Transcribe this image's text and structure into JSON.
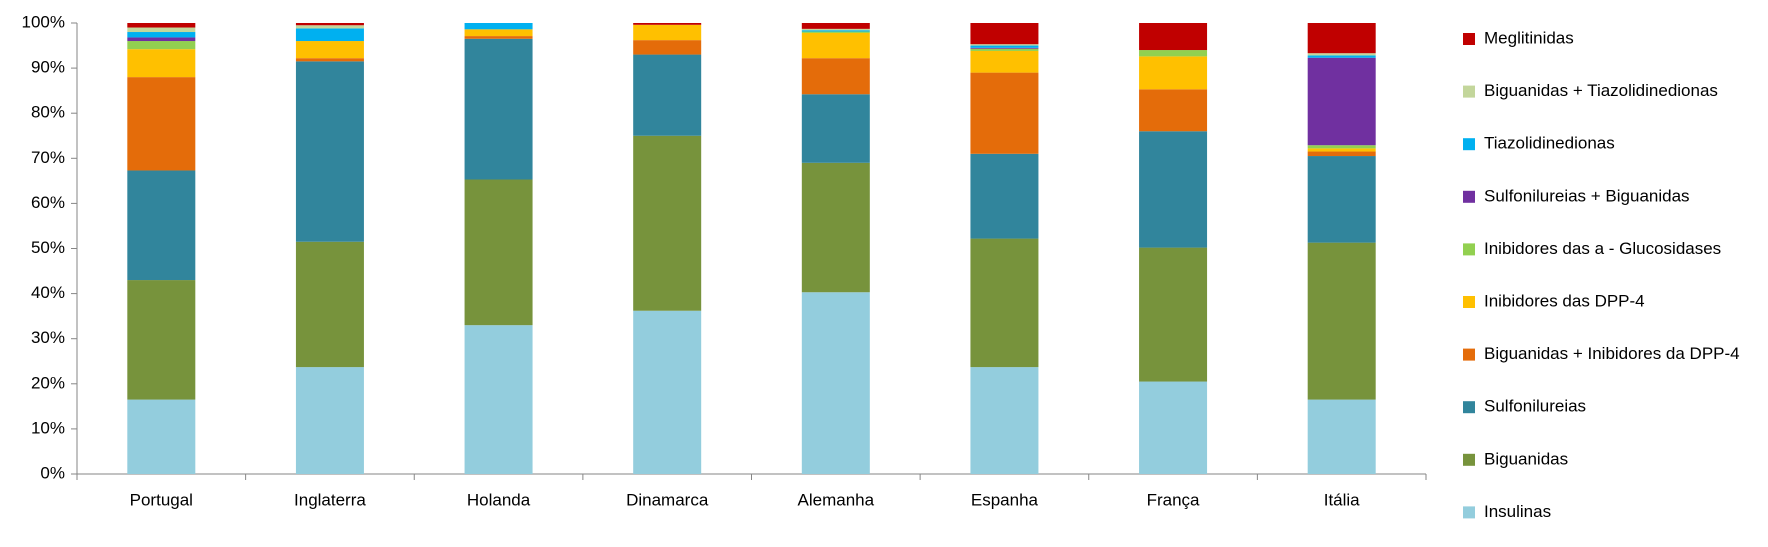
{
  "chart_data": {
    "type": "stacked_bar",
    "categories": [
      "Portugal",
      "Inglaterra",
      "Holanda",
      "Dinamarca",
      "Alemanha",
      "Espanha",
      "França",
      "Itália"
    ],
    "series": [
      {
        "name": "Insulinas",
        "color": "#93cddd",
        "values": [
          16.5,
          23.7,
          33,
          36.2,
          40.3,
          23.7,
          20.5,
          16.5
        ]
      },
      {
        "name": "Biguanidas",
        "color": "#77933c",
        "values": [
          26.5,
          27.8,
          32.3,
          38.8,
          28.7,
          28.5,
          29.7,
          34.8
        ]
      },
      {
        "name": "Sulfonilureias",
        "color": "#31859c",
        "values": [
          24.3,
          40,
          31.2,
          18,
          15.2,
          18.8,
          25.8,
          19.2
        ]
      },
      {
        "name": "Biguanidas + Inibidores da DPP-4",
        "color": "#e46c0a",
        "values": [
          20.7,
          0.7,
          0.6,
          3.2,
          8,
          18,
          9.3,
          1
        ]
      },
      {
        "name": "Inibidores das DPP-4",
        "color": "#ffc000",
        "values": [
          6.2,
          3.8,
          1.5,
          3.4,
          5.6,
          4.8,
          7.3,
          0.7
        ]
      },
      {
        "name": "Inibidores das a - Glucosidases",
        "color": "#92d050",
        "values": [
          1.8,
          0,
          0,
          0,
          0.3,
          0.5,
          1.4,
          0.7
        ]
      },
      {
        "name": "Sulfonilureias + Biguanidas",
        "color": "#7030a0",
        "values": [
          0.8,
          0,
          0,
          0,
          0,
          0.2,
          0,
          19.4
        ]
      },
      {
        "name": "Tiazolidinedionas",
        "color": "#00b0f0",
        "values": [
          1.2,
          2.8,
          1.4,
          0,
          0.3,
          0.5,
          0,
          0.5
        ]
      },
      {
        "name": "Biguanidas + Tiazolidinedionas",
        "color": "#c3d69b",
        "values": [
          1,
          0.7,
          0,
          0,
          0.3,
          0.3,
          0,
          0.5
        ]
      },
      {
        "name": "Meglitinidas",
        "color": "#c00000",
        "values": [
          1,
          0.5,
          0,
          0.4,
          1.3,
          4.7,
          6,
          6.7
        ]
      }
    ],
    "ylim": [
      0,
      100
    ],
    "yticks": [
      {
        "value": 0,
        "label": "0%"
      },
      {
        "value": 10,
        "label": "10%"
      },
      {
        "value": 20,
        "label": "20%"
      },
      {
        "value": 30,
        "label": "30%"
      },
      {
        "value": 40,
        "label": "40%"
      },
      {
        "value": 50,
        "label": "50%"
      },
      {
        "value": 60,
        "label": "60%"
      },
      {
        "value": 70,
        "label": "70%"
      },
      {
        "value": 80,
        "label": "80%"
      },
      {
        "value": 90,
        "label": "90%"
      },
      {
        "value": 100,
        "label": "100%"
      }
    ],
    "grid": false,
    "legend": "right"
  }
}
